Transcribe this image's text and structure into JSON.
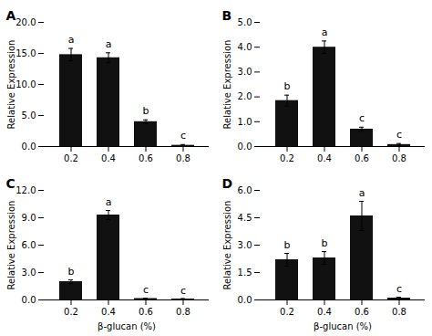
{
  "chart_data": [
    {
      "type": "bar",
      "title": "A",
      "categories": [
        "0.2",
        "0.4",
        "0.6",
        "0.8"
      ],
      "values": [
        14.8,
        14.3,
        4.0,
        0.2
      ],
      "errors": [
        1.0,
        0.8,
        0.3,
        0.12
      ],
      "annotations": [
        "a",
        "a",
        "b",
        "c"
      ],
      "color": "#111111",
      "ylim": [
        0,
        20.0
      ],
      "yticks": [
        {
          "value": 0.0,
          "label": "0.0"
        },
        {
          "value": 5.0,
          "label": "5.0"
        },
        {
          "value": 10.0,
          "label": "10.0"
        },
        {
          "value": 15.0,
          "label": "15.0"
        },
        {
          "value": 20.0,
          "label": "20.0"
        }
      ],
      "ylabel": "Relative Expression"
    },
    {
      "type": "bar",
      "title": "B",
      "categories": [
        "0.2",
        "0.4",
        "0.6",
        "0.8"
      ],
      "values": [
        1.85,
        4.0,
        0.7,
        0.08
      ],
      "errors": [
        0.22,
        0.25,
        0.08,
        0.04
      ],
      "annotations": [
        "b",
        "a",
        "c",
        "c"
      ],
      "color": "#111111",
      "ylim": [
        0,
        5.0
      ],
      "yticks": [
        {
          "value": 0.0,
          "label": "0.0"
        },
        {
          "value": 1.0,
          "label": "1.0"
        },
        {
          "value": 2.0,
          "label": "2.0"
        },
        {
          "value": 3.0,
          "label": "3.0"
        },
        {
          "value": 4.0,
          "label": "4.0"
        },
        {
          "value": 5.0,
          "label": "5.0"
        }
      ],
      "ylabel": "Relative Expression"
    },
    {
      "type": "bar",
      "title": "C",
      "categories": [
        "0.2",
        "0.4",
        "0.6",
        "0.8"
      ],
      "values": [
        2.0,
        9.3,
        0.15,
        0.1
      ],
      "errors": [
        0.2,
        0.5,
        0.05,
        0.05
      ],
      "annotations": [
        "b",
        "a",
        "c",
        "c"
      ],
      "color": "#111111",
      "ylim": [
        0,
        12.0
      ],
      "yticks": [
        {
          "value": 0.0,
          "label": "0.0"
        },
        {
          "value": 3.0,
          "label": "3.0"
        },
        {
          "value": 6.0,
          "label": "6.0"
        },
        {
          "value": 9.0,
          "label": "9.0"
        },
        {
          "value": 12.0,
          "label": "12.0"
        }
      ],
      "ylabel": "Relative Expression",
      "xlabel": "β-glucan (%)"
    },
    {
      "type": "bar",
      "title": "D",
      "categories": [
        "0.2",
        "0.4",
        "0.6",
        "0.8"
      ],
      "values": [
        2.2,
        2.3,
        4.6,
        0.1
      ],
      "errors": [
        0.35,
        0.35,
        0.8,
        0.05
      ],
      "annotations": [
        "b",
        "b",
        "a",
        "c"
      ],
      "color": "#111111",
      "ylim": [
        0,
        6.0
      ],
      "yticks": [
        {
          "value": 0.0,
          "label": "0.0"
        },
        {
          "value": 1.5,
          "label": "1.5"
        },
        {
          "value": 3.0,
          "label": "3.0"
        },
        {
          "value": 4.5,
          "label": "4.5"
        },
        {
          "value": 6.0,
          "label": "6.0"
        }
      ],
      "ylabel": "Relative Expression",
      "xlabel": "β-glucan (%)"
    }
  ]
}
